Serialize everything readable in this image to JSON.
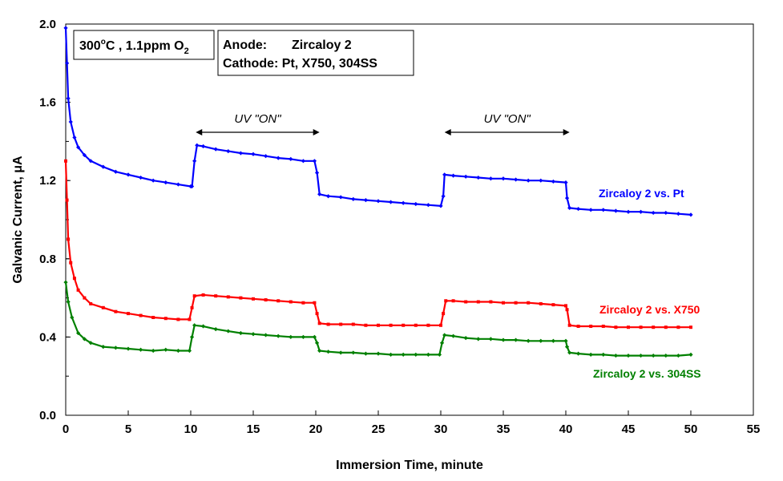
{
  "chart_data": {
    "type": "line",
    "xlabel": "Immersion Time, minute",
    "ylabel": "Galvanic Current, μA",
    "xlim": [
      0,
      55
    ],
    "ylim": [
      0.0,
      2.0
    ],
    "x_ticks": [
      "0",
      "5",
      "10",
      "15",
      "20",
      "25",
      "30",
      "35",
      "40",
      "45",
      "50",
      "55"
    ],
    "y_ticks": [
      "0.0",
      "0.4",
      "0.8",
      "1.2",
      "1.6",
      "2.0"
    ],
    "grid": false,
    "conditions_box": {
      "temp": "300",
      "deg": "o",
      "rest": "C , 1.1ppm O",
      "sub": "2"
    },
    "electrode_box": {
      "line1_key": "Anode:",
      "line1_val": "Zircaloy 2",
      "line2": "Cathode: Pt, X750, 304SS"
    },
    "annotations": [
      {
        "text": "UV \"ON\"",
        "x_start": 10.4,
        "x_end": 20.3
      },
      {
        "text": "UV \"ON\"",
        "x_start": 30.3,
        "x_end": 40.3
      }
    ],
    "series": [
      {
        "name": "Zircaloy 2 vs. Pt",
        "color": "#0000ff",
        "marker": "diamond",
        "points": [
          [
            0,
            1.98
          ],
          [
            0.1,
            1.8
          ],
          [
            0.2,
            1.62
          ],
          [
            0.4,
            1.5
          ],
          [
            0.7,
            1.42
          ],
          [
            1,
            1.37
          ],
          [
            1.5,
            1.33
          ],
          [
            2,
            1.3
          ],
          [
            3,
            1.27
          ],
          [
            4,
            1.245
          ],
          [
            5,
            1.23
          ],
          [
            6,
            1.215
          ],
          [
            7,
            1.2
          ],
          [
            8,
            1.19
          ],
          [
            9,
            1.18
          ],
          [
            10,
            1.17
          ],
          [
            10.1,
            1.17
          ],
          [
            10.3,
            1.3
          ],
          [
            10.5,
            1.38
          ],
          [
            11,
            1.375
          ],
          [
            12,
            1.36
          ],
          [
            13,
            1.35
          ],
          [
            14,
            1.34
          ],
          [
            15,
            1.335
          ],
          [
            16,
            1.325
          ],
          [
            17,
            1.315
          ],
          [
            18,
            1.31
          ],
          [
            19,
            1.3
          ],
          [
            19.9,
            1.3
          ],
          [
            20.1,
            1.24
          ],
          [
            20.3,
            1.13
          ],
          [
            21,
            1.12
          ],
          [
            22,
            1.115
          ],
          [
            23,
            1.105
          ],
          [
            24,
            1.1
          ],
          [
            25,
            1.095
          ],
          [
            26,
            1.09
          ],
          [
            27,
            1.085
          ],
          [
            28,
            1.08
          ],
          [
            29,
            1.075
          ],
          [
            30,
            1.07
          ],
          [
            30.2,
            1.12
          ],
          [
            30.3,
            1.23
          ],
          [
            31,
            1.225
          ],
          [
            32,
            1.22
          ],
          [
            33,
            1.215
          ],
          [
            34,
            1.21
          ],
          [
            35,
            1.21
          ],
          [
            36,
            1.205
          ],
          [
            37,
            1.2
          ],
          [
            38,
            1.2
          ],
          [
            39,
            1.195
          ],
          [
            40,
            1.19
          ],
          [
            40.1,
            1.11
          ],
          [
            40.3,
            1.06
          ],
          [
            41,
            1.055
          ],
          [
            42,
            1.05
          ],
          [
            43,
            1.05
          ],
          [
            44,
            1.045
          ],
          [
            45,
            1.04
          ],
          [
            46,
            1.04
          ],
          [
            47,
            1.035
          ],
          [
            48,
            1.035
          ],
          [
            49,
            1.03
          ],
          [
            50,
            1.025
          ]
        ]
      },
      {
        "name": "Zircaloy 2 vs. X750",
        "color": "#ff0000",
        "marker": "square",
        "points": [
          [
            0,
            1.3
          ],
          [
            0.1,
            1.1
          ],
          [
            0.2,
            0.9
          ],
          [
            0.4,
            0.78
          ],
          [
            0.7,
            0.7
          ],
          [
            1,
            0.64
          ],
          [
            1.5,
            0.6
          ],
          [
            2,
            0.57
          ],
          [
            3,
            0.55
          ],
          [
            4,
            0.53
          ],
          [
            5,
            0.52
          ],
          [
            6,
            0.51
          ],
          [
            7,
            0.5
          ],
          [
            8,
            0.495
          ],
          [
            9,
            0.49
          ],
          [
            9.9,
            0.49
          ],
          [
            10.1,
            0.55
          ],
          [
            10.3,
            0.61
          ],
          [
            11,
            0.615
          ],
          [
            12,
            0.61
          ],
          [
            13,
            0.605
          ],
          [
            14,
            0.6
          ],
          [
            15,
            0.595
          ],
          [
            16,
            0.59
          ],
          [
            17,
            0.585
          ],
          [
            18,
            0.58
          ],
          [
            19,
            0.575
          ],
          [
            19.9,
            0.575
          ],
          [
            20.1,
            0.52
          ],
          [
            20.3,
            0.47
          ],
          [
            21,
            0.465
          ],
          [
            22,
            0.465
          ],
          [
            23,
            0.465
          ],
          [
            24,
            0.46
          ],
          [
            25,
            0.46
          ],
          [
            26,
            0.46
          ],
          [
            27,
            0.46
          ],
          [
            28,
            0.46
          ],
          [
            29,
            0.46
          ],
          [
            30,
            0.46
          ],
          [
            30.2,
            0.52
          ],
          [
            30.4,
            0.585
          ],
          [
            31,
            0.585
          ],
          [
            32,
            0.58
          ],
          [
            33,
            0.58
          ],
          [
            34,
            0.58
          ],
          [
            35,
            0.575
          ],
          [
            36,
            0.575
          ],
          [
            37,
            0.575
          ],
          [
            38,
            0.57
          ],
          [
            39,
            0.565
          ],
          [
            40,
            0.56
          ],
          [
            40.1,
            0.54
          ],
          [
            40.3,
            0.46
          ],
          [
            41,
            0.455
          ],
          [
            42,
            0.455
          ],
          [
            43,
            0.455
          ],
          [
            44,
            0.45
          ],
          [
            45,
            0.45
          ],
          [
            46,
            0.45
          ],
          [
            47,
            0.45
          ],
          [
            48,
            0.45
          ],
          [
            49,
            0.45
          ],
          [
            50,
            0.45
          ]
        ]
      },
      {
        "name": "Zircaloy 2 vs. 304SS",
        "color": "#008000",
        "marker": "diamond",
        "points": [
          [
            0,
            0.68
          ],
          [
            0.2,
            0.58
          ],
          [
            0.5,
            0.5
          ],
          [
            1,
            0.42
          ],
          [
            1.5,
            0.39
          ],
          [
            2,
            0.37
          ],
          [
            3,
            0.35
          ],
          [
            4,
            0.345
          ],
          [
            5,
            0.34
          ],
          [
            6,
            0.335
          ],
          [
            7,
            0.33
          ],
          [
            8,
            0.335
          ],
          [
            9,
            0.33
          ],
          [
            9.9,
            0.33
          ],
          [
            10.1,
            0.4
          ],
          [
            10.3,
            0.46
          ],
          [
            11,
            0.455
          ],
          [
            12,
            0.44
          ],
          [
            13,
            0.43
          ],
          [
            14,
            0.42
          ],
          [
            15,
            0.415
          ],
          [
            16,
            0.41
          ],
          [
            17,
            0.405
          ],
          [
            18,
            0.4
          ],
          [
            19,
            0.4
          ],
          [
            19.9,
            0.4
          ],
          [
            20.1,
            0.37
          ],
          [
            20.3,
            0.33
          ],
          [
            21,
            0.325
          ],
          [
            22,
            0.32
          ],
          [
            23,
            0.32
          ],
          [
            24,
            0.315
          ],
          [
            25,
            0.315
          ],
          [
            26,
            0.31
          ],
          [
            27,
            0.31
          ],
          [
            28,
            0.31
          ],
          [
            29,
            0.31
          ],
          [
            29.9,
            0.31
          ],
          [
            30.1,
            0.37
          ],
          [
            30.3,
            0.41
          ],
          [
            31,
            0.405
          ],
          [
            32,
            0.395
          ],
          [
            33,
            0.39
          ],
          [
            34,
            0.39
          ],
          [
            35,
            0.385
          ],
          [
            36,
            0.385
          ],
          [
            37,
            0.38
          ],
          [
            38,
            0.38
          ],
          [
            39,
            0.38
          ],
          [
            40,
            0.38
          ],
          [
            40.1,
            0.35
          ],
          [
            40.3,
            0.32
          ],
          [
            41,
            0.315
          ],
          [
            42,
            0.31
          ],
          [
            43,
            0.31
          ],
          [
            44,
            0.305
          ],
          [
            45,
            0.305
          ],
          [
            46,
            0.305
          ],
          [
            47,
            0.305
          ],
          [
            48,
            0.305
          ],
          [
            49,
            0.305
          ],
          [
            50,
            0.31
          ]
        ]
      }
    ]
  }
}
